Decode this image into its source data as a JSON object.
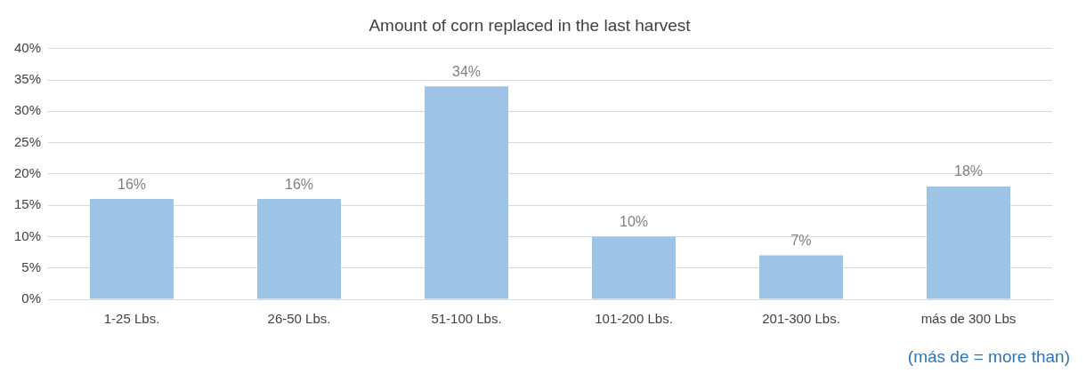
{
  "chart_data": {
    "type": "bar",
    "title": "Amount of corn replaced in the last harvest",
    "categories": [
      "1-25 Lbs.",
      "26-50 Lbs.",
      "51-100 Lbs.",
      "101-200 Lbs.",
      "201-300 Lbs.",
      "más de 300 Lbs"
    ],
    "values": [
      16,
      16,
      34,
      10,
      7,
      18
    ],
    "value_labels": [
      "16%",
      "16%",
      "34%",
      "10%",
      "7%",
      "18%"
    ],
    "color": "#9dc3e6",
    "ylim": [
      0,
      40
    ],
    "yticks": [
      {
        "value": 0,
        "label": "0%"
      },
      {
        "value": 5,
        "label": "5%"
      },
      {
        "value": 10,
        "label": "10%"
      },
      {
        "value": 15,
        "label": "15%"
      },
      {
        "value": 20,
        "label": "20%"
      },
      {
        "value": 25,
        "label": "25%"
      },
      {
        "value": 30,
        "label": "30%"
      },
      {
        "value": 35,
        "label": "35%"
      },
      {
        "value": 40,
        "label": "40%"
      }
    ],
    "grid": "y",
    "legend": false,
    "annotations": [
      "(más de = more than)"
    ]
  }
}
